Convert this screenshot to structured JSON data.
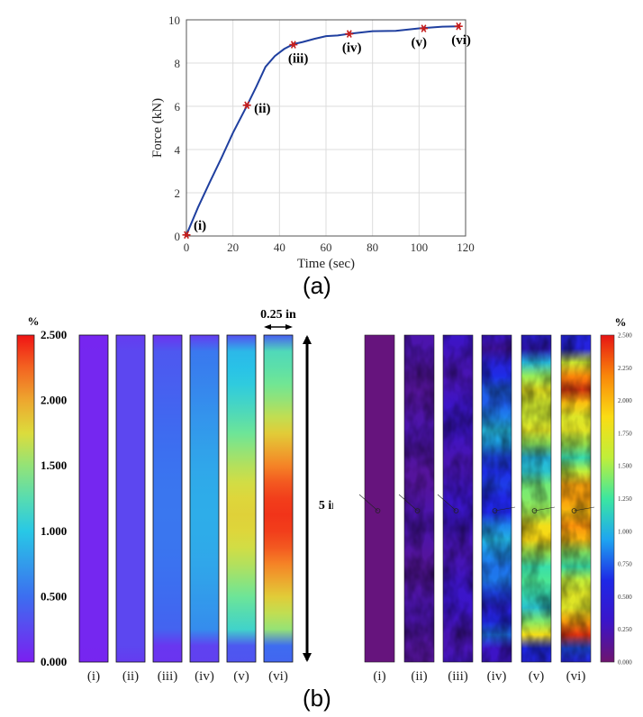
{
  "chart_data": [
    {
      "type": "line",
      "title": "",
      "xlabel": "Time (sec)",
      "ylabel": "Force (kN)",
      "xlim": [
        0,
        120
      ],
      "ylim": [
        0,
        10
      ],
      "xticks": [
        0,
        20,
        40,
        60,
        80,
        100,
        120
      ],
      "yticks": [
        0,
        2,
        4,
        6,
        8,
        10
      ],
      "series": [
        {
          "name": "Force",
          "color": "#1f3f9f",
          "x": [
            0,
            5,
            10,
            15,
            20,
            26,
            30,
            34,
            38,
            42,
            46,
            50,
            55,
            60,
            65,
            70,
            80,
            90,
            100,
            110,
            117
          ],
          "y": [
            0.05,
            1.3,
            2.5,
            3.6,
            4.75,
            6.05,
            6.9,
            7.8,
            8.35,
            8.65,
            8.85,
            9.0,
            9.12,
            9.22,
            9.3,
            9.35,
            9.45,
            9.52,
            9.6,
            9.66,
            9.7
          ]
        }
      ],
      "markers": [
        {
          "label": "(i)",
          "x": 0,
          "y": 0.05
        },
        {
          "label": "(ii)",
          "x": 26,
          "y": 6.05
        },
        {
          "label": "(iii)",
          "x": 46,
          "y": 8.85
        },
        {
          "label": "(iv)",
          "x": 70,
          "y": 9.35
        },
        {
          "label": "(v)",
          "x": 102,
          "y": 9.6
        },
        {
          "label": "(vi)",
          "x": 117,
          "y": 9.7
        }
      ],
      "marker_color": "#c41e1e"
    },
    {
      "type": "heatmap",
      "title": "",
      "colorbar": {
        "unit": "%",
        "min": 0,
        "max": 2.5,
        "ticks": [
          "0.000",
          "0.500",
          "1.000",
          "1.500",
          "2.000",
          "2.500"
        ]
      },
      "specimen_width": "0.25 in",
      "specimen_length": "5 in",
      "stages": [
        "(i)",
        "(ii)",
        "(iii)",
        "(iv)",
        "(v)",
        "(vi)"
      ],
      "peak_strain_percent": [
        0.05,
        0.25,
        0.55,
        0.85,
        1.8,
        2.4
      ]
    },
    {
      "type": "heatmap",
      "title": "",
      "colorbar": {
        "unit": "%",
        "min": 0,
        "max": 2.5,
        "ticks": [
          "0.000",
          "0.250",
          "0.500",
          "0.750",
          "1.000",
          "1.250",
          "1.500",
          "1.750",
          "2.000",
          "2.250",
          "2.500"
        ]
      },
      "stages": [
        "(i)",
        "(ii)",
        "(iii)",
        "(iv)",
        "(v)",
        "(vi)"
      ],
      "mean_strain_percent": [
        0.05,
        0.2,
        0.3,
        0.9,
        1.7,
        2.1
      ]
    }
  ],
  "captions": {
    "a": "(a)",
    "b": "(b)"
  }
}
